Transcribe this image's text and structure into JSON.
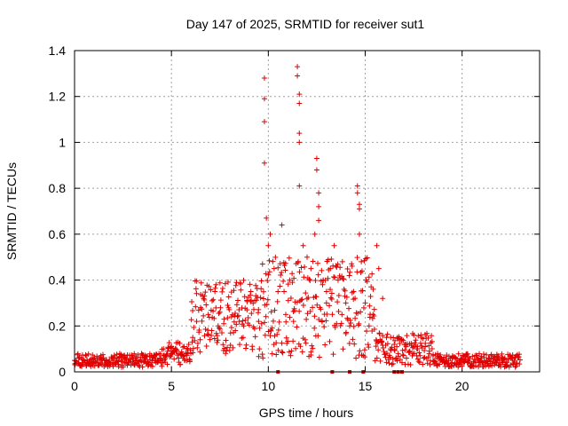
{
  "chart_data": {
    "type": "scatter",
    "title": "Day 147 of 2025, SRMTID for receiver sut1",
    "xlabel": "GPS time / hours",
    "ylabel": "SRMTID / TECUs",
    "xlim": [
      0,
      24
    ],
    "ylim": [
      0,
      1.4
    ],
    "xticks": [
      0,
      5,
      10,
      15,
      20
    ],
    "xtick_labels": [
      "0",
      "5",
      "10",
      "15",
      "20"
    ],
    "yticks": [
      0,
      0.2,
      0.4,
      0.6,
      0.8,
      1.0,
      1.2,
      1.4
    ],
    "ytick_labels": [
      "0",
      "0.2",
      "0.4",
      "0.6",
      "0.8",
      "1",
      "1.2",
      "1.4"
    ],
    "grid": true,
    "marker": "+",
    "color": "#e00000",
    "series": [
      {
        "name": "SRMTID",
        "points": [
          [
            0.0,
            0.05
          ],
          [
            0.2,
            0.06
          ],
          [
            0.4,
            0.04
          ],
          [
            0.6,
            0.07
          ],
          [
            0.8,
            0.05
          ],
          [
            1.0,
            0.06
          ],
          [
            1.2,
            0.04
          ],
          [
            1.4,
            0.05
          ],
          [
            1.6,
            0.03
          ],
          [
            1.8,
            0.05
          ],
          [
            2.0,
            0.04
          ],
          [
            2.2,
            0.06
          ],
          [
            2.4,
            0.05
          ],
          [
            2.6,
            0.04
          ],
          [
            2.8,
            0.05
          ],
          [
            3.0,
            0.06
          ],
          [
            3.2,
            0.04
          ],
          [
            3.4,
            0.05
          ],
          [
            3.6,
            0.06
          ],
          [
            3.8,
            0.04
          ],
          [
            4.0,
            0.05
          ],
          [
            4.2,
            0.04
          ],
          [
            4.4,
            0.06
          ],
          [
            4.6,
            0.07
          ],
          [
            4.8,
            0.09
          ],
          [
            5.0,
            0.11
          ],
          [
            5.2,
            0.1
          ],
          [
            5.4,
            0.08
          ],
          [
            5.6,
            0.06
          ],
          [
            5.8,
            0.05
          ],
          [
            6.0,
            0.08
          ],
          [
            6.1,
            0.15
          ],
          [
            6.3,
            0.22
          ],
          [
            6.5,
            0.28
          ],
          [
            6.7,
            0.33
          ],
          [
            6.9,
            0.25
          ],
          [
            7.1,
            0.31
          ],
          [
            7.3,
            0.38
          ],
          [
            7.5,
            0.26
          ],
          [
            7.7,
            0.21
          ],
          [
            7.9,
            0.29
          ],
          [
            8.1,
            0.24
          ],
          [
            8.3,
            0.18
          ],
          [
            8.5,
            0.22
          ],
          [
            8.7,
            0.15
          ],
          [
            8.9,
            0.27
          ],
          [
            9.1,
            0.35
          ],
          [
            9.3,
            0.31
          ],
          [
            9.5,
            0.22
          ],
          [
            9.7,
            0.47
          ],
          [
            9.8,
            1.28
          ],
          [
            9.8,
            1.19
          ],
          [
            9.8,
            1.09
          ],
          [
            9.8,
            0.91
          ],
          [
            9.9,
            0.67
          ],
          [
            10.0,
            0.55
          ],
          [
            10.1,
            0.6
          ],
          [
            10.3,
            0.45
          ],
          [
            10.5,
            0.35
          ],
          [
            10.7,
            0.64
          ],
          [
            10.9,
            0.25
          ],
          [
            11.1,
            0.4
          ],
          [
            11.3,
            0.22
          ],
          [
            11.5,
            1.33
          ],
          [
            11.5,
            1.29
          ],
          [
            11.6,
            1.21
          ],
          [
            11.6,
            1.17
          ],
          [
            11.6,
            1.04
          ],
          [
            11.6,
            1.0
          ],
          [
            11.6,
            0.81
          ],
          [
            11.8,
            0.55
          ],
          [
            12.0,
            0.5
          ],
          [
            12.2,
            0.45
          ],
          [
            12.4,
            0.6
          ],
          [
            12.5,
            0.93
          ],
          [
            12.5,
            0.88
          ],
          [
            12.6,
            0.78
          ],
          [
            12.6,
            0.72
          ],
          [
            12.6,
            0.66
          ],
          [
            12.8,
            0.38
          ],
          [
            13.0,
            0.3
          ],
          [
            13.2,
            0.45
          ],
          [
            13.4,
            0.55
          ],
          [
            13.6,
            0.4
          ],
          [
            13.8,
            0.25
          ],
          [
            14.0,
            0.3
          ],
          [
            14.2,
            0.2
          ],
          [
            14.4,
            0.35
          ],
          [
            14.6,
            0.81
          ],
          [
            14.6,
            0.78
          ],
          [
            14.7,
            0.73
          ],
          [
            14.7,
            0.71
          ],
          [
            14.7,
            0.6
          ],
          [
            14.8,
            0.48
          ],
          [
            15.0,
            0.3
          ],
          [
            15.2,
            0.2
          ],
          [
            15.4,
            0.25
          ],
          [
            15.6,
            0.55
          ],
          [
            15.7,
            0.45
          ],
          [
            15.9,
            0.32
          ],
          [
            16.1,
            0.15
          ],
          [
            16.3,
            0.1
          ],
          [
            16.5,
            0.12
          ],
          [
            16.7,
            0.08
          ],
          [
            16.9,
            0.14
          ],
          [
            17.1,
            0.12
          ],
          [
            17.3,
            0.09
          ],
          [
            17.5,
            0.11
          ],
          [
            17.7,
            0.1
          ],
          [
            17.9,
            0.15
          ],
          [
            18.1,
            0.11
          ],
          [
            18.3,
            0.08
          ],
          [
            18.5,
            0.07
          ],
          [
            18.7,
            0.06
          ],
          [
            18.9,
            0.05
          ],
          [
            19.1,
            0.04
          ],
          [
            19.3,
            0.05
          ],
          [
            19.5,
            0.04
          ],
          [
            19.7,
            0.03
          ],
          [
            19.9,
            0.05
          ],
          [
            20.1,
            0.04
          ],
          [
            20.3,
            0.05
          ],
          [
            20.5,
            0.03
          ],
          [
            20.7,
            0.04
          ],
          [
            20.9,
            0.05
          ],
          [
            21.1,
            0.04
          ],
          [
            21.3,
            0.05
          ],
          [
            21.5,
            0.06
          ],
          [
            21.7,
            0.04
          ],
          [
            21.9,
            0.05
          ],
          [
            22.1,
            0.06
          ],
          [
            22.3,
            0.04
          ],
          [
            22.5,
            0.03
          ],
          [
            22.7,
            0.05
          ]
        ],
        "dense_bands": [
          {
            "x_start": 0.0,
            "x_end": 4.5,
            "y_base": 0.05,
            "spread": 0.03
          },
          {
            "x_start": 4.5,
            "x_end": 6.0,
            "y_base": 0.08,
            "spread": 0.05
          },
          {
            "x_start": 6.0,
            "x_end": 9.5,
            "y_base": 0.24,
            "spread": 0.16
          },
          {
            "x_start": 9.5,
            "x_end": 15.5,
            "y_base": 0.28,
            "spread": 0.22
          },
          {
            "x_start": 15.5,
            "x_end": 18.5,
            "y_base": 0.1,
            "spread": 0.07
          },
          {
            "x_start": 18.5,
            "x_end": 23.0,
            "y_base": 0.05,
            "spread": 0.03
          }
        ],
        "zero_points": [
          10.5,
          13.3,
          14.2,
          14.9,
          16.5,
          16.7,
          16.9
        ]
      }
    ]
  }
}
